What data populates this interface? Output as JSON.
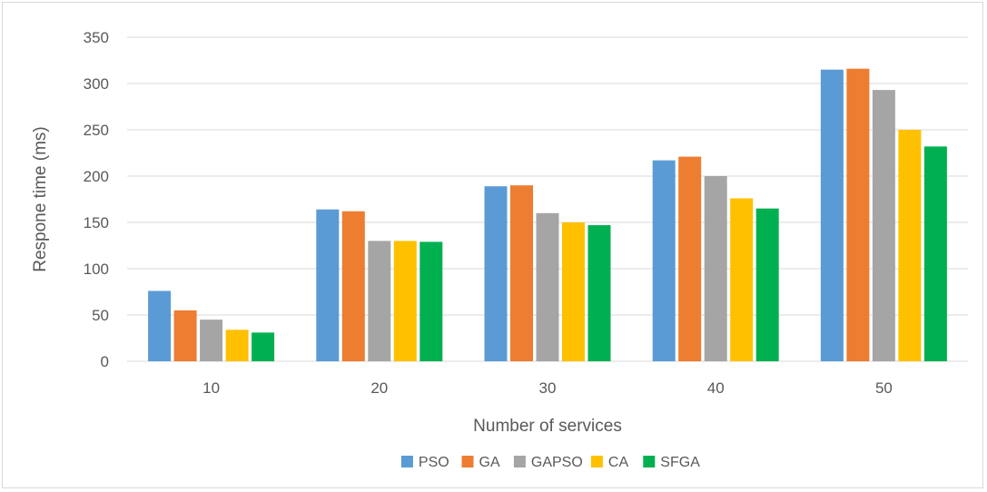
{
  "chart_data": {
    "type": "bar",
    "title": "",
    "xlabel": "Number of services",
    "ylabel": "Respone time (ms)",
    "categories": [
      "10",
      "20",
      "30",
      "40",
      "50"
    ],
    "ylim": [
      0,
      350
    ],
    "yticks": [
      0,
      50,
      100,
      150,
      200,
      250,
      300,
      350
    ],
    "grid": true,
    "legend_position": "bottom",
    "series": [
      {
        "name": "PSO",
        "color": "#5b9bd5",
        "values": [
          76,
          164,
          189,
          217,
          315
        ]
      },
      {
        "name": "GA",
        "color": "#ed7d31",
        "values": [
          55,
          162,
          190,
          221,
          316
        ]
      },
      {
        "name": "GAPSO",
        "color": "#a5a5a5",
        "values": [
          45,
          130,
          160,
          200,
          293
        ]
      },
      {
        "name": "CA",
        "color": "#ffc000",
        "values": [
          34,
          130,
          150,
          176,
          250
        ]
      },
      {
        "name": "SFGA",
        "color": "#00b050",
        "values": [
          31,
          129,
          147,
          165,
          232
        ]
      }
    ]
  }
}
